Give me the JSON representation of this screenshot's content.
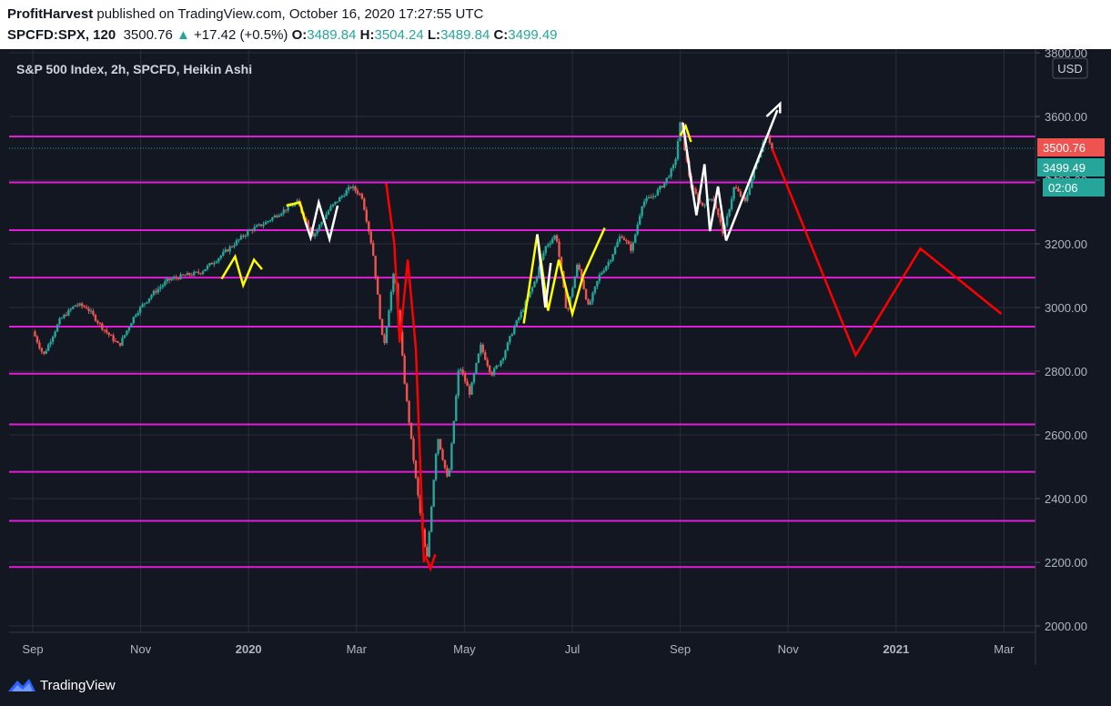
{
  "header": {
    "author": "ProfitHarvest",
    "published": " published on TradingView.com, October 16, 2020 17:27:55 UTC",
    "symbol": "SPCFD:SPX, 120",
    "last": "3500.76",
    "change_arrow": "▲",
    "change": "+17.42 (+0.5%)",
    "o_label": "O:",
    "o_value": "3489.84",
    "h_label": "H:",
    "h_value": "3504.24",
    "l_label": "L:",
    "l_value": "3489.84",
    "c_label": "C:",
    "c_value": "3499.49"
  },
  "footer": {
    "brand": "TradingView",
    "icon": "tradingview-logo-icon"
  },
  "colors": {
    "background": "#131722",
    "up": "#26a69a",
    "down": "#ef5350",
    "level": "#e01cd5",
    "yellow": "#ffff00",
    "white": "#ffffff",
    "red": "#ff0000"
  },
  "chart_data": {
    "type": "line",
    "title": "S&P 500 Index, 2h, SPCFD, Heikin Ashi",
    "currency": "USD",
    "ylim": [
      2000,
      3800
    ],
    "y_ticks": [
      2000,
      2200,
      2400,
      2600,
      2800,
      3000,
      3200,
      3400,
      3600,
      3800
    ],
    "y_tick_labels": [
      "2000.00",
      "2200.00",
      "2400.00",
      "2600.00",
      "2800.00",
      "3000.00",
      "3200.00",
      "3400.00",
      "3600.00",
      "3800.00"
    ],
    "x_ticks": [
      "Sep",
      "Nov",
      "2020",
      "Mar",
      "May",
      "Jul",
      "Sep",
      "Nov",
      "2021",
      "Mar"
    ],
    "x_tick_months": [
      0,
      2,
      4,
      6,
      8,
      10,
      12,
      14,
      16,
      18
    ],
    "x_axis_origin": "2019-08",
    "price_labels": {
      "last": "3500.76",
      "close": "3499.49",
      "countdown": "02:06",
      "hidden_partial": "34"
    },
    "horizontal_levels": [
      3537,
      3393,
      3243,
      3094,
      2940,
      2792,
      2633,
      2484,
      2330,
      2185
    ],
    "price_series": {
      "name": "SPX Heikin Ashi (approx.)",
      "x_months": [
        0.0,
        0.2,
        0.5,
        0.8,
        1.0,
        1.3,
        1.6,
        1.9,
        2.2,
        2.5,
        2.8,
        3.1,
        3.4,
        3.7,
        4.0,
        4.3,
        4.6,
        4.9,
        5.2,
        5.5,
        5.9,
        6.1,
        6.3,
        6.5,
        6.7,
        6.9,
        7.1,
        7.3,
        7.5,
        7.7,
        7.9,
        8.1,
        8.3,
        8.5,
        8.7,
        8.9,
        9.1,
        9.3,
        9.5,
        9.7,
        9.9,
        10.1,
        10.3,
        10.5,
        10.7,
        10.9,
        11.1,
        11.3,
        11.5,
        11.7,
        11.9,
        12.0,
        12.2,
        12.4,
        12.6,
        12.8,
        13.0,
        13.2,
        13.4,
        13.6,
        13.7
      ],
      "values": [
        2925,
        2850,
        2960,
        3010,
        3000,
        2935,
        2880,
        2980,
        3040,
        3085,
        3100,
        3110,
        3150,
        3195,
        3240,
        3265,
        3300,
        3330,
        3225,
        3310,
        3380,
        3350,
        3180,
        2870,
        3120,
        2750,
        2460,
        2200,
        2600,
        2450,
        2820,
        2730,
        2880,
        2790,
        2840,
        2930,
        3000,
        3080,
        3190,
        3230,
        2980,
        3140,
        3000,
        3100,
        3150,
        3230,
        3180,
        3330,
        3350,
        3390,
        3450,
        3580,
        3380,
        3320,
        3350,
        3230,
        3380,
        3330,
        3450,
        3550,
        3500
      ],
      "up_color": "#26a69a",
      "down_color": "#ef5350"
    },
    "annotations": [
      {
        "name": "yellow-zigzag-dec",
        "color": "#ffff00",
        "x_months": [
          3.5,
          3.75,
          3.9,
          4.1,
          4.25
        ],
        "values": [
          3090,
          3160,
          3070,
          3150,
          3120
        ]
      },
      {
        "name": "yellow-arrow-jan",
        "color": "#ffff00",
        "x_months": [
          4.7,
          4.95,
          5.05
        ],
        "values": [
          3320,
          3330,
          3270
        ]
      },
      {
        "name": "white-zigzag-feb",
        "color": "#ffffff",
        "x_months": [
          5.05,
          5.15,
          5.3,
          5.5,
          5.65
        ],
        "values": [
          3270,
          3220,
          3330,
          3215,
          3320
        ]
      },
      {
        "name": "red-crash-line",
        "color": "#ff0000",
        "x_months": [
          6.55,
          6.7,
          6.8,
          6.95,
          7.1,
          7.25
        ],
        "values": [
          3390,
          3200,
          2890,
          3150,
          2870,
          2200
        ]
      },
      {
        "name": "red-arrow-march-low",
        "color": "#ff0000",
        "x_months": [
          7.28,
          7.37,
          7.46
        ],
        "values": [
          2220,
          2180,
          2225
        ]
      },
      {
        "name": "yellow-zigzag-may-june",
        "color": "#ffff00",
        "x_months": [
          9.1,
          9.35,
          9.55,
          9.75,
          10.0,
          10.2,
          10.6
        ],
        "values": [
          2950,
          3230,
          2990,
          3150,
          2980,
          3100,
          3250
        ]
      },
      {
        "name": "white-zigzag-june",
        "color": "#ffffff",
        "x_months": [
          9.35,
          9.5,
          9.6
        ],
        "values": [
          3230,
          3000,
          3140
        ]
      },
      {
        "name": "yellow-arrow-aug",
        "color": "#ffff00",
        "x_months": [
          12.0,
          12.1,
          12.2
        ],
        "values": [
          3540,
          3570,
          3520
        ]
      },
      {
        "name": "white-zigzag-sep",
        "color": "#ffffff",
        "x_months": [
          12.05,
          12.2,
          12.3,
          12.45,
          12.55,
          12.7,
          12.85
        ],
        "values": [
          3580,
          3400,
          3290,
          3450,
          3240,
          3380,
          3210
        ]
      },
      {
        "name": "white-projection-up",
        "color": "#ffffff",
        "x_months": [
          12.85,
          13.8
        ],
        "values": [
          3210,
          3620
        ]
      },
      {
        "name": "white-arrowhead-up",
        "color": "#ffffff",
        "x_months": [
          13.6,
          13.85,
          13.85
        ],
        "values": [
          3600,
          3640,
          3610
        ]
      },
      {
        "name": "red-projection-path",
        "color": "#ff0000",
        "x_months": [
          13.7,
          15.25,
          16.45,
          17.95
        ],
        "values": [
          3500,
          2850,
          3185,
          2980
        ]
      }
    ]
  }
}
